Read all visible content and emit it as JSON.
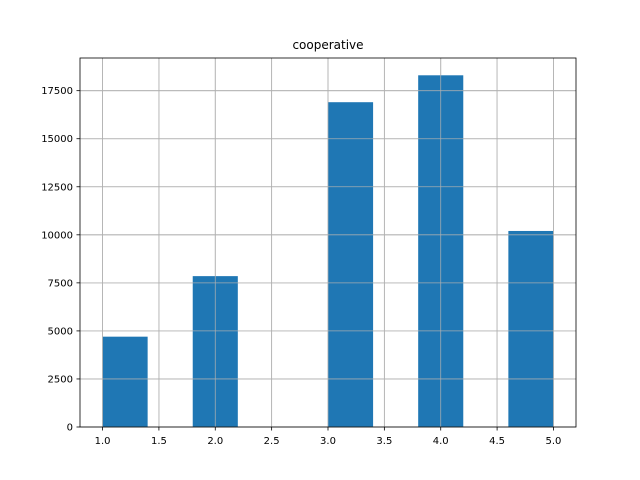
{
  "chart_data": {
    "type": "bar",
    "title": "cooperative",
    "xlabel": "",
    "ylabel": "",
    "grid": true,
    "xlim": [
      0.8,
      5.2
    ],
    "ylim": [
      0,
      19200
    ],
    "xticks": [
      1.0,
      1.5,
      2.0,
      2.5,
      3.0,
      3.5,
      4.0,
      4.5,
      5.0
    ],
    "xtick_labels": [
      "1.0",
      "1.5",
      "2.0",
      "2.5",
      "3.0",
      "3.5",
      "4.0",
      "4.5",
      "5.0"
    ],
    "yticks": [
      0,
      2500,
      5000,
      7500,
      10000,
      12500,
      15000,
      17500
    ],
    "ytick_labels": [
      "0",
      "2500",
      "5000",
      "7500",
      "10000",
      "12500",
      "15000",
      "17500"
    ],
    "bins": [
      {
        "start": 1.0,
        "end": 1.4,
        "value": 4700
      },
      {
        "start": 1.4,
        "end": 1.8,
        "value": 0
      },
      {
        "start": 1.8,
        "end": 2.2,
        "value": 7850
      },
      {
        "start": 2.2,
        "end": 2.6,
        "value": 0
      },
      {
        "start": 2.6,
        "end": 3.0,
        "value": 0
      },
      {
        "start": 3.0,
        "end": 3.4,
        "value": 16900
      },
      {
        "start": 3.4,
        "end": 3.8,
        "value": 0
      },
      {
        "start": 3.8,
        "end": 4.2,
        "value": 18300
      },
      {
        "start": 4.2,
        "end": 4.6,
        "value": 0
      },
      {
        "start": 4.6,
        "end": 5.0,
        "value": 10200
      }
    ],
    "bar_color": "#1f77b4",
    "grid_color": "#b0b0b0"
  }
}
